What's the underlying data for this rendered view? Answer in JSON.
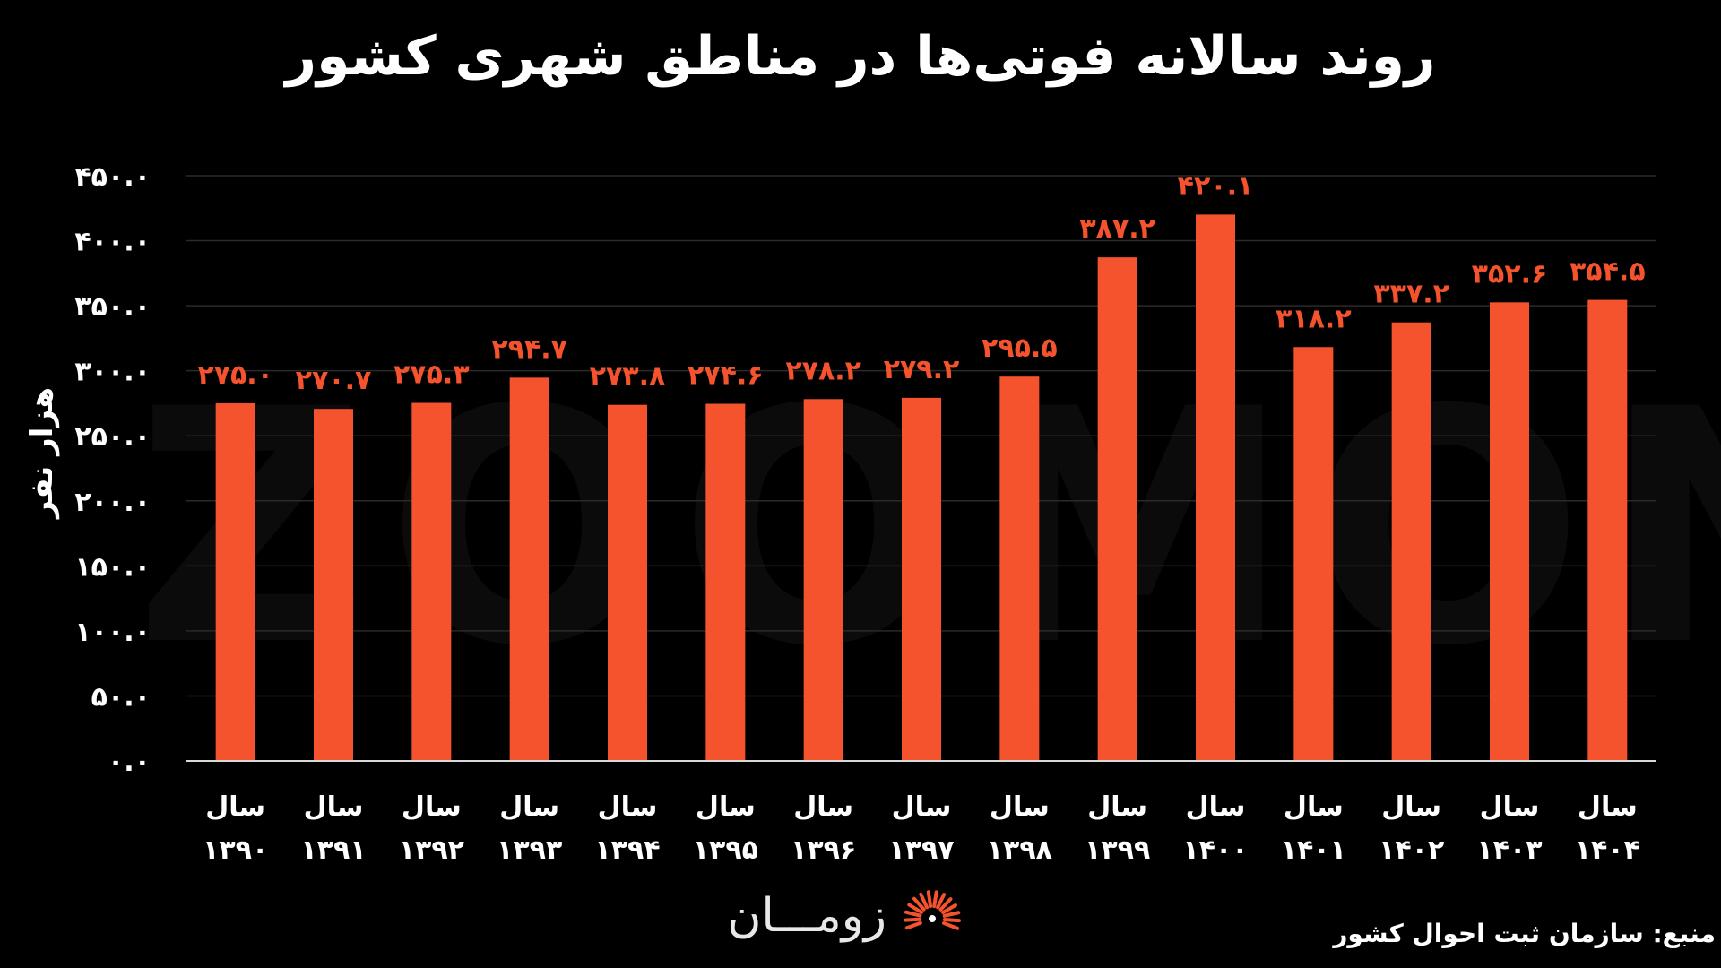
{
  "chart_data": {
    "type": "bar",
    "title": "روند سالانه فوتی‌ها در مناطق شهری کشور",
    "ylabel": "هزار نفر",
    "xlabel": "",
    "ylim": [
      0,
      450
    ],
    "y_ticks": [
      0,
      50,
      100,
      150,
      200,
      250,
      300,
      350,
      400,
      450
    ],
    "y_tick_labels": [
      "۰.۰",
      "۵۰.۰",
      "۱۰۰.۰",
      "۱۵۰.۰",
      "۲۰۰.۰",
      "۲۵۰.۰",
      "۳۰۰.۰",
      "۳۵۰.۰",
      "۴۰۰.۰",
      "۴۵۰.۰"
    ],
    "grid": true,
    "category_prefix": "سال",
    "categories": [
      "۱۳۹۰",
      "۱۳۹۱",
      "۱۳۹۲",
      "۱۳۹۳",
      "۱۳۹۴",
      "۱۳۹۵",
      "۱۳۹۶",
      "۱۳۹۷",
      "۱۳۹۸",
      "۱۳۹۹",
      "۱۴۰۰",
      "۱۴۰۱",
      "۱۴۰۲",
      "۱۴۰۳",
      "۱۴۰۴"
    ],
    "values": [
      275.0,
      270.7,
      275.3,
      294.7,
      273.8,
      274.6,
      278.2,
      279.2,
      295.5,
      387.2,
      420.1,
      318.2,
      337.2,
      352.6,
      354.5
    ],
    "value_labels": [
      "۲۷۵.۰",
      "۲۷۰.۷",
      "۲۷۵.۳",
      "۲۹۴.۷",
      "۲۷۳.۸",
      "۲۷۴.۶",
      "۲۷۸.۲",
      "۲۷۹.۲",
      "۲۹۵.۵",
      "۳۸۷.۲",
      "۴۲۰.۱",
      "۳۱۸.۲",
      "۳۳۷.۲",
      "۳۵۲.۶",
      "۳۵۴.۵"
    ],
    "bar_color": "#f4532e",
    "label_color": "#f4532e",
    "grid_color": "#2a2a2a",
    "text_color": "#ffffff"
  },
  "source": "منبع: سازمان ثبت احوال کشور",
  "logo": {
    "text": "زومـــان",
    "mark_icon": "zoomaan-burst-icon",
    "accent": "#f4532e"
  },
  "watermark": "ZOOMON"
}
